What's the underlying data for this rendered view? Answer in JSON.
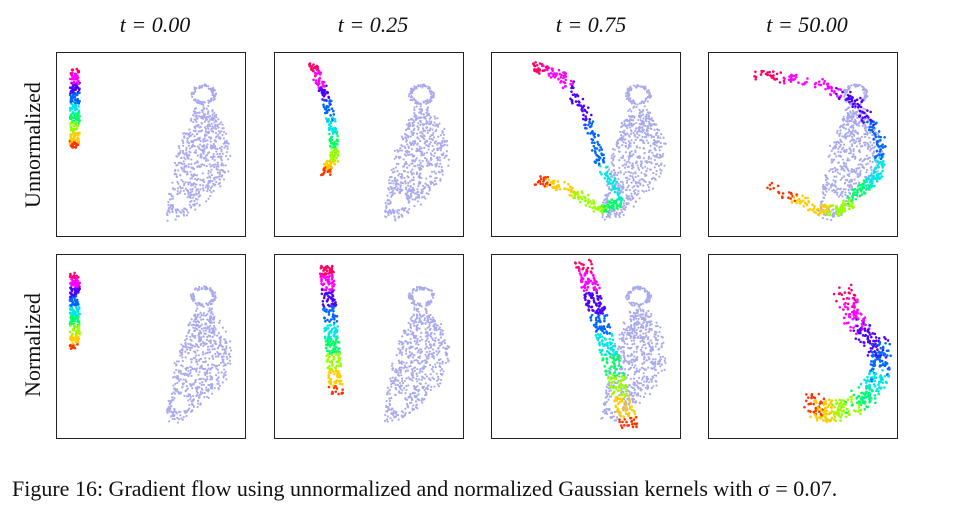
{
  "figure": {
    "column_titles": [
      "t = 0.00",
      "t = 0.25",
      "t = 0.75",
      "t = 50.00"
    ],
    "row_labels": [
      "Unnormalized",
      "Normalized"
    ],
    "caption": "Figure 16:  Gradient flow using unnormalized and normalized Gaussian kernels with σ = 0.07.",
    "colors": {
      "target": "#a9a9ee",
      "rainbow": [
        "#ff0066",
        "#ff00ff",
        "#4b00ff",
        "#0066ff",
        "#00e6e6",
        "#00ff66",
        "#99ff00",
        "#ffcc00",
        "#ff3300"
      ]
    }
  }
}
